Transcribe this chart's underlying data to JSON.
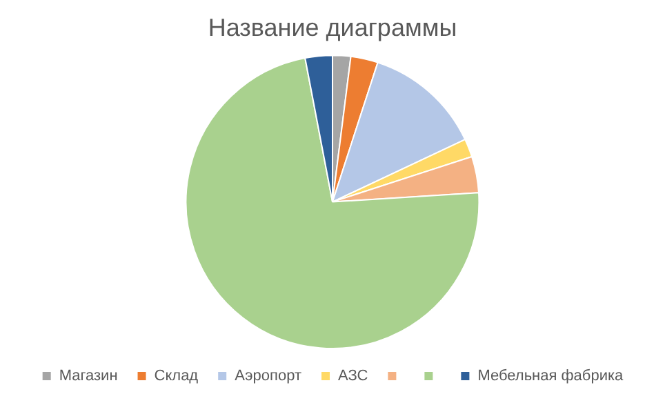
{
  "chart_data": {
    "type": "pie",
    "title": "Название диаграммы",
    "categories": [
      "Магазин",
      "Склад",
      "Аэропорт",
      "АЗС",
      null,
      null,
      "Мебельная фабрика"
    ],
    "values": [
      2,
      3,
      13,
      2,
      4,
      73,
      3
    ],
    "colors": [
      "#a5a5a5",
      "#ed7d31",
      "#b4c7e7",
      "#ffd966",
      "#f4b183",
      "#a9d18e",
      "#2e5f99"
    ],
    "legend": "bottom"
  }
}
